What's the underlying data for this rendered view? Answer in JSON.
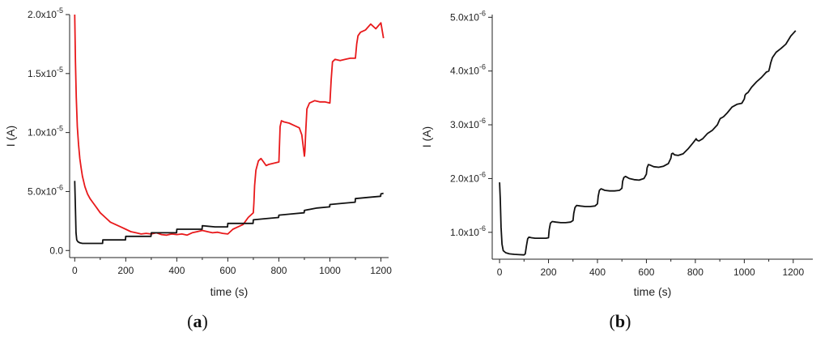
{
  "chart_data": [
    {
      "type": "line",
      "panel_label": "a",
      "xlabel": "time (s)",
      "ylabel": "I (A)",
      "xlim": [
        -20,
        1230
      ],
      "ylim": [
        -6e-07,
        2e-05
      ],
      "x_ticks": [
        {
          "value": 0,
          "label": "0"
        },
        {
          "value": 200,
          "label": "200"
        },
        {
          "value": 400,
          "label": "400"
        },
        {
          "value": 600,
          "label": "600"
        },
        {
          "value": 800,
          "label": "800"
        },
        {
          "value": 1000,
          "label": "1000"
        },
        {
          "value": 1200,
          "label": "1200"
        }
      ],
      "y_ticks": [
        {
          "value": 0,
          "base": "0.0",
          "exp": ""
        },
        {
          "value": 5e-06,
          "base": "5.0x10",
          "exp": "-6"
        },
        {
          "value": 1e-05,
          "base": "1.0x10",
          "exp": "-5"
        },
        {
          "value": 1.5e-05,
          "base": "1.5x10",
          "exp": "-5"
        },
        {
          "value": 2e-05,
          "base": "2.0x10",
          "exp": "-5"
        }
      ],
      "series": [
        {
          "color": "#e8191b",
          "x": [
            0,
            3,
            6,
            10,
            15,
            20,
            25,
            30,
            40,
            50,
            60,
            70,
            80,
            90,
            100,
            120,
            140,
            160,
            180,
            200,
            220,
            240,
            260,
            280,
            300,
            320,
            340,
            360,
            380,
            400,
            420,
            440,
            460,
            480,
            500,
            520,
            540,
            560,
            580,
            600,
            620,
            640,
            660,
            680,
            700,
            702,
            705,
            710,
            720,
            730,
            740,
            750,
            760,
            780,
            800,
            805,
            810,
            820,
            840,
            860,
            880,
            890,
            900,
            902,
            905,
            910,
            920,
            940,
            960,
            980,
            1000,
            1005,
            1010,
            1020,
            1040,
            1060,
            1080,
            1100,
            1105,
            1110,
            1120,
            1140,
            1160,
            1180,
            1200,
            1210
          ],
          "y": [
            2e-05,
            1.6e-05,
            1.3e-05,
            1.05e-05,
            9e-06,
            7.8e-06,
            7e-06,
            6.3e-06,
            5.4e-06,
            4.8e-06,
            4.4e-06,
            4.1e-06,
            3.8e-06,
            3.5e-06,
            3.2e-06,
            2.8e-06,
            2.4e-06,
            2.2e-06,
            2e-06,
            1.8e-06,
            1.6e-06,
            1.5e-06,
            1.4e-06,
            1.45e-06,
            1.4e-06,
            1.5e-06,
            1.35e-06,
            1.3e-06,
            1.4e-06,
            1.35e-06,
            1.4e-06,
            1.3e-06,
            1.5e-06,
            1.6e-06,
            1.7e-06,
            1.6e-06,
            1.5e-06,
            1.55e-06,
            1.45e-06,
            1.4e-06,
            1.8e-06,
            2e-06,
            2.2e-06,
            2.8e-06,
            3.2e-06,
            4e-06,
            5.5e-06,
            6.8e-06,
            7.6e-06,
            7.8e-06,
            7.5e-06,
            7.2e-06,
            7.3e-06,
            7.4e-06,
            7.5e-06,
            1.05e-05,
            1.1e-05,
            1.09e-05,
            1.08e-05,
            1.06e-05,
            1.04e-05,
            9.8e-06,
            8e-06,
            8.4e-06,
            1e-05,
            1.2e-05,
            1.25e-05,
            1.27e-05,
            1.26e-05,
            1.26e-05,
            1.25e-05,
            1.45e-05,
            1.6e-05,
            1.62e-05,
            1.61e-05,
            1.62e-05,
            1.63e-05,
            1.63e-05,
            1.75e-05,
            1.82e-05,
            1.85e-05,
            1.87e-05,
            1.92e-05,
            1.88e-05,
            1.93e-05,
            1.8e-05
          ]
        },
        {
          "color": "#111111",
          "x": [
            0,
            3,
            5,
            8,
            12,
            20,
            30,
            50,
            70,
            90,
            109,
            110,
            150,
            199,
            200,
            260,
            299,
            300,
            340,
            399,
            400,
            450,
            499,
            500,
            550,
            599,
            600,
            650,
            699,
            700,
            750,
            799,
            800,
            850,
            899,
            900,
            950,
            999,
            1000,
            1050,
            1099,
            1100,
            1150,
            1199,
            1200,
            1210
          ],
          "y": [
            5.9e-06,
            3.5e-06,
            1.5e-06,
            9e-07,
            7.5e-07,
            6.5e-07,
            6e-07,
            6e-07,
            6e-07,
            6e-07,
            6e-07,
            9e-07,
            9e-07,
            9e-07,
            1.2e-06,
            1.2e-06,
            1.2e-06,
            1.5e-06,
            1.5e-06,
            1.5e-06,
            1.8e-06,
            1.8e-06,
            1.8e-06,
            2.1e-06,
            2e-06,
            2e-06,
            2.3e-06,
            2.3e-06,
            2.3e-06,
            2.6e-06,
            2.7e-06,
            2.8e-06,
            3e-06,
            3.1e-06,
            3.2e-06,
            3.4e-06,
            3.6e-06,
            3.7e-06,
            3.9e-06,
            4e-06,
            4.1e-06,
            4.4e-06,
            4.5e-06,
            4.6e-06,
            4.8e-06,
            4.85e-06
          ]
        }
      ]
    },
    {
      "type": "line",
      "panel_label": "b",
      "xlabel": "time (s)",
      "ylabel": "I (A)",
      "xlim": [
        -30,
        1280
      ],
      "ylim": [
        5e-07,
        5.05e-06
      ],
      "x_ticks": [
        {
          "value": 0,
          "label": "0"
        },
        {
          "value": 200,
          "label": "200"
        },
        {
          "value": 400,
          "label": "400"
        },
        {
          "value": 600,
          "label": "600"
        },
        {
          "value": 800,
          "label": "800"
        },
        {
          "value": 1000,
          "label": "1000"
        },
        {
          "value": 1200,
          "label": "1200"
        }
      ],
      "y_ticks": [
        {
          "value": 1e-06,
          "base": "1.0x10",
          "exp": "-6"
        },
        {
          "value": 2e-06,
          "base": "2.0x10",
          "exp": "-6"
        },
        {
          "value": 3e-06,
          "base": "3.0x10",
          "exp": "-6"
        },
        {
          "value": 4e-06,
          "base": "4.0x10",
          "exp": "-6"
        },
        {
          "value": 5e-06,
          "base": "5.0x10",
          "exp": "-6"
        }
      ],
      "series": [
        {
          "color": "#111111",
          "x": [
            0,
            3,
            6,
            10,
            15,
            25,
            40,
            60,
            80,
            100,
            105,
            110,
            115,
            120,
            130,
            145,
            160,
            175,
            190,
            200,
            203,
            208,
            215,
            230,
            250,
            270,
            290,
            300,
            303,
            308,
            315,
            330,
            350,
            370,
            390,
            400,
            403,
            408,
            415,
            430,
            450,
            470,
            490,
            500,
            503,
            508,
            515,
            530,
            550,
            570,
            590,
            600,
            603,
            608,
            615,
            630,
            650,
            670,
            690,
            700,
            703,
            708,
            715,
            730,
            750,
            770,
            790,
            800,
            803,
            808,
            815,
            830,
            850,
            870,
            890,
            900,
            903,
            908,
            915,
            930,
            950,
            970,
            990,
            1000,
            1003,
            1008,
            1015,
            1030,
            1050,
            1070,
            1090,
            1100,
            1103,
            1108,
            1115,
            1130,
            1150,
            1170,
            1190,
            1200,
            1210
          ],
          "y": [
            1.93e-06,
            1.6e-06,
            1.1e-06,
            7.8e-07,
            6.6e-07,
            6.2e-07,
            6e-07,
            5.9e-07,
            5.85e-07,
            5.8e-07,
            6e-07,
            7.5e-07,
            8.8e-07,
            9.1e-07,
            9e-07,
            8.9e-07,
            8.9e-07,
            8.9e-07,
            8.9e-07,
            9e-07,
            1.05e-06,
            1.17e-06,
            1.2e-06,
            1.19e-06,
            1.18e-06,
            1.18e-06,
            1.19e-06,
            1.22e-06,
            1.35e-06,
            1.46e-06,
            1.5e-06,
            1.49e-06,
            1.48e-06,
            1.48e-06,
            1.49e-06,
            1.53e-06,
            1.67e-06,
            1.78e-06,
            1.81e-06,
            1.78e-06,
            1.77e-06,
            1.77e-06,
            1.78e-06,
            1.82e-06,
            1.95e-06,
            2.02e-06,
            2.04e-06,
            2e-06,
            1.98e-06,
            1.97e-06,
            2e-06,
            2.08e-06,
            2.2e-06,
            2.26e-06,
            2.25e-06,
            2.22e-06,
            2.21e-06,
            2.23e-06,
            2.28e-06,
            2.38e-06,
            2.46e-06,
            2.47e-06,
            2.44e-06,
            2.43e-06,
            2.46e-06,
            2.55e-06,
            2.66e-06,
            2.72e-06,
            2.74e-06,
            2.71e-06,
            2.7e-06,
            2.74e-06,
            2.84e-06,
            2.9e-06,
            3e-06,
            3.1e-06,
            3.12e-06,
            3.13e-06,
            3.15e-06,
            3.22e-06,
            3.33e-06,
            3.38e-06,
            3.4e-06,
            3.48e-06,
            3.55e-06,
            3.58e-06,
            3.6e-06,
            3.7e-06,
            3.8e-06,
            3.88e-06,
            3.98e-06,
            4e-06,
            4.05e-06,
            4.15e-06,
            4.25e-06,
            4.35e-06,
            4.42e-06,
            4.5e-06,
            4.65e-06,
            4.7e-06,
            4.75e-06
          ]
        }
      ]
    }
  ]
}
